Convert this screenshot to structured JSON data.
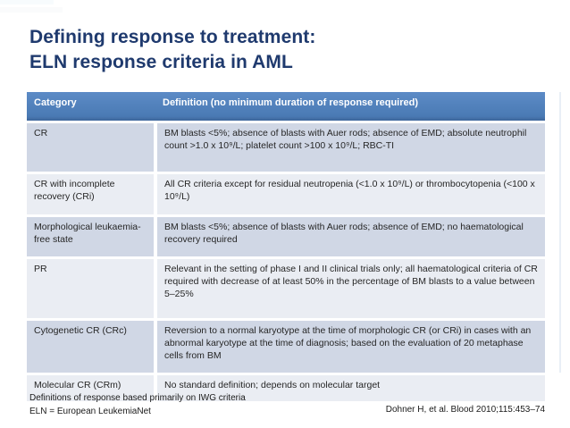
{
  "slide": {
    "title": {
      "line1": "Defining response to treatment:",
      "line2": "ELN response criteria in AML"
    },
    "table": {
      "headers": [
        "Category",
        "Definition (no minimum duration of response required)"
      ],
      "rows": [
        {
          "category": "CR",
          "definition": "BM blasts  <5%; absence of blasts with Auer rods; absence of EMD; absolute neutrophil count >1.0 x 10⁹/L; platelet count >100 x 10⁹/L; RBC-TI"
        },
        {
          "category": "CR with incomplete recovery (CRi)",
          "definition": "All CR criteria except for residual neutropenia (<1.0 x 10⁹/L) or thrombocytopenia (<100 x 10⁹/L)"
        },
        {
          "category": "Morphological leukaemia-free state",
          "definition": "BM blasts <5%; absence of blasts with Auer rods; absence of EMD; no haematological recovery required"
        },
        {
          "category": "PR",
          "definition": "Relevant in the setting of phase I and II clinical trials only; all haematological criteria of CR required with decrease of at least 50% in the percentage of BM blasts to a value between 5–25%"
        },
        {
          "category": "Cytogenetic CR (CRc)",
          "definition": "Reversion to a normal karyotype at the time of morphologic CR (or CRi) in cases with an abnormal karyotype at the time of diagnosis; based on the evaluation of 20 metaphase cells from BM"
        },
        {
          "category": "Molecular CR (CRm)",
          "definition": "No standard definition; depends on molecular target"
        }
      ]
    },
    "footnotes": {
      "line1": "Definitions of response based primarily on IWG criteria",
      "line2": "ELN = European LeukemiaNet"
    },
    "citation": "Dohner H, et al. Blood 2010;115:453–74",
    "colors": {
      "title_text": "#1F3A6E",
      "header_bg": "#4F81BD",
      "row_band_a": "#D0D7E5",
      "row_band_b": "#EAEDF3",
      "body_text": "#262626"
    }
  }
}
